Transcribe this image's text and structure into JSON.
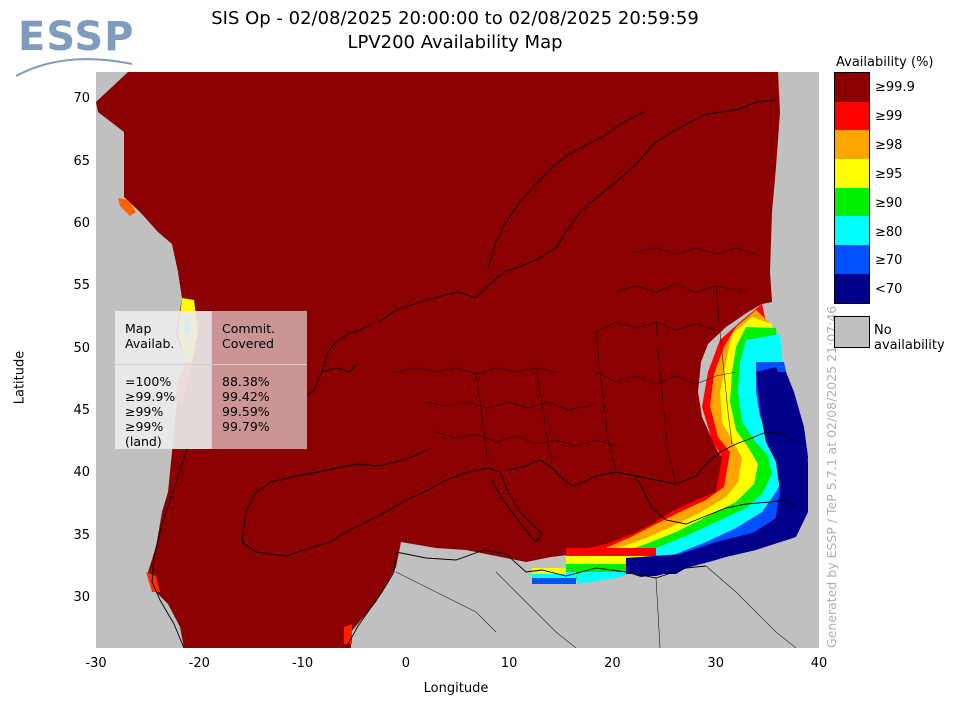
{
  "logo": {
    "text": "ESSP"
  },
  "title": {
    "line1": "SIS Op - 02/08/2025 20:00:00 to 02/08/2025 20:59:59",
    "line2": "LPV200 Availability Map"
  },
  "axes": {
    "xlabel": "Longitude",
    "ylabel": "Latitude",
    "xticks": [
      {
        "v": -30,
        "label": "-30"
      },
      {
        "v": -20,
        "label": "-20"
      },
      {
        "v": -10,
        "label": "-10"
      },
      {
        "v": 0,
        "label": "0"
      },
      {
        "v": 10,
        "label": "10"
      },
      {
        "v": 20,
        "label": "20"
      },
      {
        "v": 30,
        "label": "30"
      },
      {
        "v": 40,
        "label": "40"
      }
    ],
    "yticks": [
      {
        "v": 30,
        "label": "30"
      },
      {
        "v": 35,
        "label": "35"
      },
      {
        "v": 40,
        "label": "40"
      },
      {
        "v": 45,
        "label": "45"
      },
      {
        "v": 50,
        "label": "50"
      },
      {
        "v": 55,
        "label": "55"
      },
      {
        "v": 60,
        "label": "60"
      },
      {
        "v": 65,
        "label": "65"
      },
      {
        "v": 70,
        "label": "70"
      }
    ],
    "xlim": [
      -30,
      40
    ],
    "ylim": [
      26,
      72.2
    ]
  },
  "legend": {
    "title": "Availability (%)",
    "items": [
      {
        "label": "≥99.9",
        "color": "#8b0000"
      },
      {
        "label": "≥99",
        "color": "#ff0000"
      },
      {
        "label": "≥98",
        "color": "#ffa500"
      },
      {
        "label": "≥95",
        "color": "#ffff00"
      },
      {
        "label": "≥90",
        "color": "#00ee00"
      },
      {
        "label": "≥80",
        "color": "#00ffff"
      },
      {
        "label": "≥70",
        "color": "#0050ff"
      },
      {
        "label": "<70",
        "color": "#00008b"
      }
    ],
    "no_availability": {
      "label": "No availability",
      "color": "#c0c0c0"
    }
  },
  "stats": {
    "header_left": "Map\nAvailab.",
    "header_right": "Commit.\nCovered",
    "rows": [
      {
        "label": "=100%",
        "value": "88.38%"
      },
      {
        "label": "≥99.9%",
        "value": "99.42%"
      },
      {
        "label": "≥99%",
        "value": "99.59%"
      },
      {
        "label": "≥99% (land)",
        "value": "99.79%"
      }
    ]
  },
  "generated_by": "Generated by ESSP / TeP 5.7.1 at 02/08/2025 21:07:46"
}
